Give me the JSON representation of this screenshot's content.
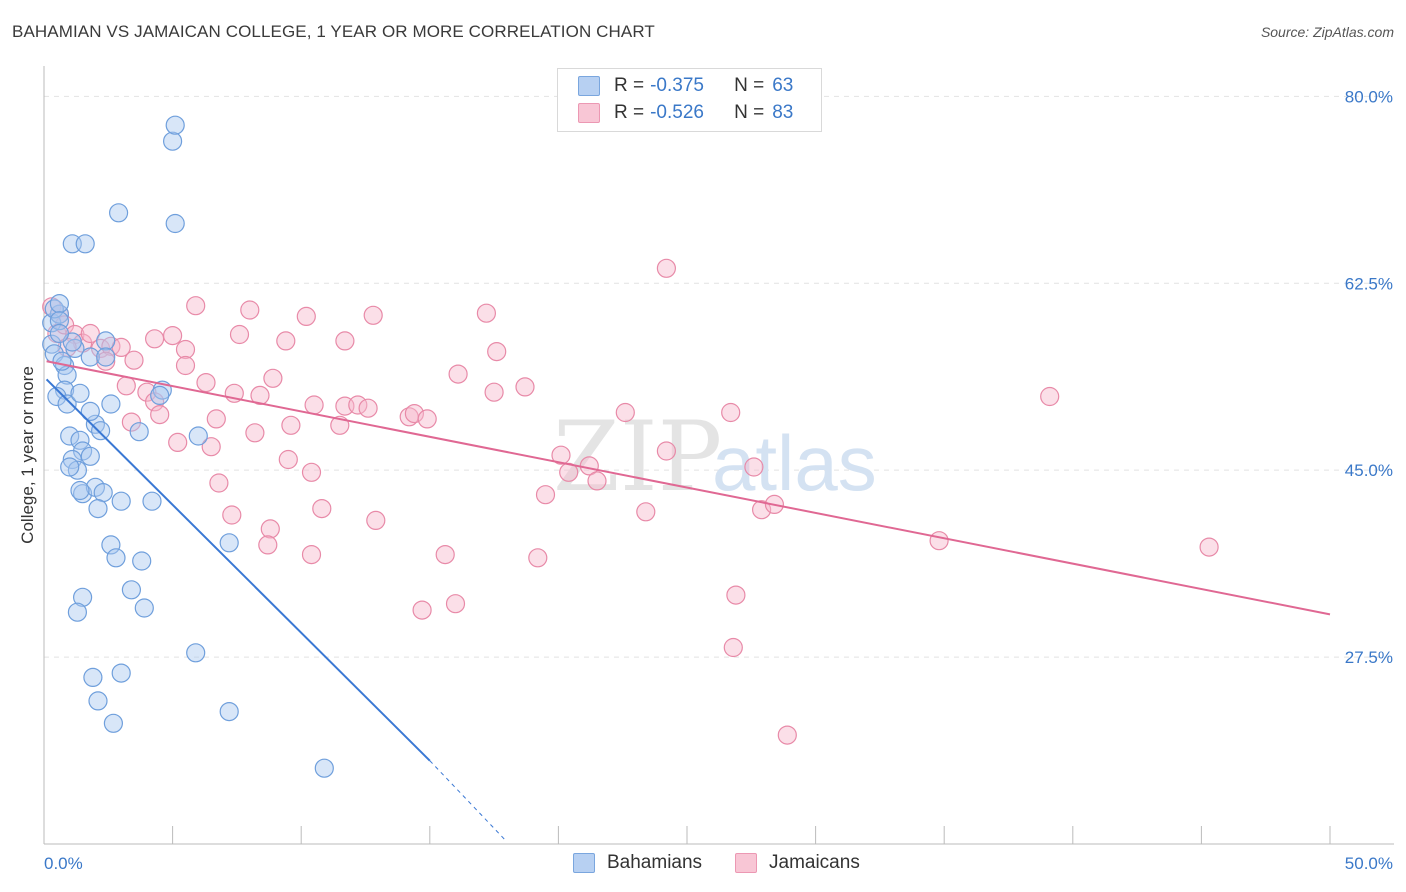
{
  "header": {
    "title": "BAHAMIAN VS JAMAICAN COLLEGE, 1 YEAR OR MORE CORRELATION CHART",
    "source": "Source: ZipAtlas.com"
  },
  "watermark": {
    "zip": "ZIP",
    "atlas": "atlas"
  },
  "legend": {
    "rows": [
      {
        "r_label": "R =",
        "r_value": "-0.375",
        "n_label": "N =",
        "n_value": "63"
      },
      {
        "r_label": "R =",
        "r_value": "-0.526",
        "n_label": "N =",
        "n_value": "83"
      }
    ]
  },
  "bottom_legend": {
    "series1": "Bahamians",
    "series2": "Jamaicans"
  },
  "colors": {
    "blue_fill": "#a9c8f0",
    "blue_stroke": "#6f9fdc",
    "blue_line": "#3a78d4",
    "pink_fill": "#f6b8cb",
    "pink_stroke": "#e88aa8",
    "pink_line": "#e06893",
    "tick_label": "#3a78c8",
    "grid": "#e2e2e2"
  },
  "chart_data": {
    "type": "scatter",
    "title": "BAHAMIAN VS JAMAICAN COLLEGE, 1 YEAR OR MORE CORRELATION CHART",
    "xlabel": "",
    "ylabel": "College, 1 year or more",
    "xlim": [
      0,
      50
    ],
    "ylim": [
      10,
      82
    ],
    "x_tick_labels": [
      "0.0%",
      "50.0%"
    ],
    "y_ticks": [
      27.5,
      45.0,
      62.5,
      80.0
    ],
    "y_tick_labels": [
      "27.5%",
      "45.0%",
      "62.5%",
      "80.0%"
    ],
    "grid": true,
    "series": [
      {
        "name": "Bahamians",
        "r": -0.375,
        "n": 63,
        "trend": {
          "x0": 0.1,
          "y0": 53.5,
          "x1": 15.0,
          "y1": 17.8,
          "dash_to_x": 18.0,
          "dash_to_y": 10.2
        },
        "points": [
          [
            0.3,
            58.8
          ],
          [
            0.6,
            59.6
          ],
          [
            0.4,
            60.1
          ],
          [
            0.6,
            60.6
          ],
          [
            0.3,
            56.8
          ],
          [
            0.4,
            55.9
          ],
          [
            0.6,
            59.0
          ],
          [
            0.8,
            54.8
          ],
          [
            0.9,
            53.9
          ],
          [
            0.8,
            52.5
          ],
          [
            0.5,
            51.9
          ],
          [
            0.9,
            51.2
          ],
          [
            1.4,
            52.2
          ],
          [
            1.2,
            56.4
          ],
          [
            1.8,
            55.6
          ],
          [
            2.4,
            57.1
          ],
          [
            2.4,
            55.6
          ],
          [
            1.0,
            48.2
          ],
          [
            1.4,
            47.8
          ],
          [
            1.5,
            46.8
          ],
          [
            1.1,
            46.0
          ],
          [
            1.3,
            45.0
          ],
          [
            1.0,
            45.3
          ],
          [
            1.5,
            42.8
          ],
          [
            1.8,
            46.3
          ],
          [
            2.0,
            43.4
          ],
          [
            1.4,
            43.1
          ],
          [
            2.3,
            42.9
          ],
          [
            2.1,
            41.4
          ],
          [
            3.0,
            42.1
          ],
          [
            4.2,
            42.1
          ],
          [
            2.6,
            38.0
          ],
          [
            2.8,
            36.8
          ],
          [
            3.8,
            36.5
          ],
          [
            3.4,
            33.8
          ],
          [
            1.5,
            33.1
          ],
          [
            1.3,
            31.7
          ],
          [
            3.9,
            32.1
          ],
          [
            1.9,
            25.6
          ],
          [
            3.0,
            26.0
          ],
          [
            2.1,
            23.4
          ],
          [
            2.7,
            21.3
          ],
          [
            5.9,
            27.9
          ],
          [
            7.2,
            22.4
          ],
          [
            10.9,
            17.1
          ],
          [
            7.2,
            38.2
          ],
          [
            6.0,
            48.2
          ],
          [
            4.6,
            52.5
          ],
          [
            2.6,
            51.2
          ],
          [
            2.0,
            49.3
          ],
          [
            4.5,
            52.0
          ],
          [
            3.7,
            48.6
          ],
          [
            1.1,
            66.2
          ],
          [
            1.6,
            66.2
          ],
          [
            2.9,
            69.1
          ],
          [
            5.1,
            68.1
          ],
          [
            5.0,
            75.8
          ],
          [
            5.1,
            77.3
          ],
          [
            1.8,
            50.5
          ],
          [
            0.7,
            55.2
          ],
          [
            1.1,
            57.0
          ],
          [
            0.6,
            57.8
          ],
          [
            2.2,
            48.7
          ]
        ]
      },
      {
        "name": "Jamaicans",
        "r": -0.526,
        "n": 83,
        "trend": {
          "x0": 0.1,
          "y0": 55.2,
          "x1": 50.0,
          "y1": 31.5
        },
        "points": [
          [
            0.3,
            60.3
          ],
          [
            0.6,
            59.6
          ],
          [
            0.5,
            57.8
          ],
          [
            0.8,
            58.6
          ],
          [
            1.2,
            57.7
          ],
          [
            1.5,
            56.9
          ],
          [
            1.8,
            57.8
          ],
          [
            2.2,
            56.4
          ],
          [
            2.6,
            56.6
          ],
          [
            3.0,
            56.5
          ],
          [
            2.4,
            55.2
          ],
          [
            3.5,
            55.3
          ],
          [
            0.9,
            56.5
          ],
          [
            4.3,
            57.3
          ],
          [
            5.0,
            57.6
          ],
          [
            5.5,
            56.3
          ],
          [
            5.9,
            60.4
          ],
          [
            7.6,
            57.7
          ],
          [
            8.0,
            60.0
          ],
          [
            9.4,
            57.1
          ],
          [
            10.2,
            59.4
          ],
          [
            11.7,
            57.1
          ],
          [
            12.8,
            59.5
          ],
          [
            17.2,
            59.7
          ],
          [
            17.6,
            56.1
          ],
          [
            16.1,
            54.0
          ],
          [
            8.9,
            53.6
          ],
          [
            6.3,
            53.2
          ],
          [
            5.5,
            54.8
          ],
          [
            3.2,
            52.9
          ],
          [
            4.0,
            52.3
          ],
          [
            4.3,
            51.4
          ],
          [
            4.5,
            50.2
          ],
          [
            3.4,
            49.5
          ],
          [
            5.2,
            47.6
          ],
          [
            6.5,
            47.2
          ],
          [
            6.7,
            49.8
          ],
          [
            7.4,
            52.2
          ],
          [
            8.4,
            52.0
          ],
          [
            8.2,
            48.5
          ],
          [
            9.6,
            49.2
          ],
          [
            9.5,
            46.0
          ],
          [
            10.5,
            51.1
          ],
          [
            11.7,
            51.0
          ],
          [
            11.5,
            49.2
          ],
          [
            12.2,
            51.1
          ],
          [
            12.6,
            50.8
          ],
          [
            14.2,
            50.0
          ],
          [
            14.4,
            50.3
          ],
          [
            14.9,
            49.8
          ],
          [
            17.5,
            52.3
          ],
          [
            18.7,
            52.8
          ],
          [
            20.1,
            46.4
          ],
          [
            21.2,
            45.4
          ],
          [
            20.4,
            44.8
          ],
          [
            21.5,
            44.0
          ],
          [
            19.5,
            42.7
          ],
          [
            23.4,
            41.1
          ],
          [
            24.2,
            46.8
          ],
          [
            22.6,
            50.4
          ],
          [
            6.8,
            43.8
          ],
          [
            7.3,
            40.8
          ],
          [
            8.8,
            39.5
          ],
          [
            8.7,
            38.0
          ],
          [
            10.4,
            44.8
          ],
          [
            10.8,
            41.4
          ],
          [
            10.4,
            37.1
          ],
          [
            12.9,
            40.3
          ],
          [
            15.6,
            37.1
          ],
          [
            14.7,
            31.9
          ],
          [
            16.0,
            32.5
          ],
          [
            19.2,
            36.8
          ],
          [
            26.7,
            50.4
          ],
          [
            27.6,
            45.3
          ],
          [
            27.9,
            41.3
          ],
          [
            28.4,
            41.8
          ],
          [
            26.9,
            33.3
          ],
          [
            26.8,
            28.4
          ],
          [
            28.9,
            20.2
          ],
          [
            24.2,
            63.9
          ],
          [
            34.8,
            38.4
          ],
          [
            39.1,
            51.9
          ],
          [
            45.3,
            37.8
          ]
        ]
      }
    ]
  }
}
